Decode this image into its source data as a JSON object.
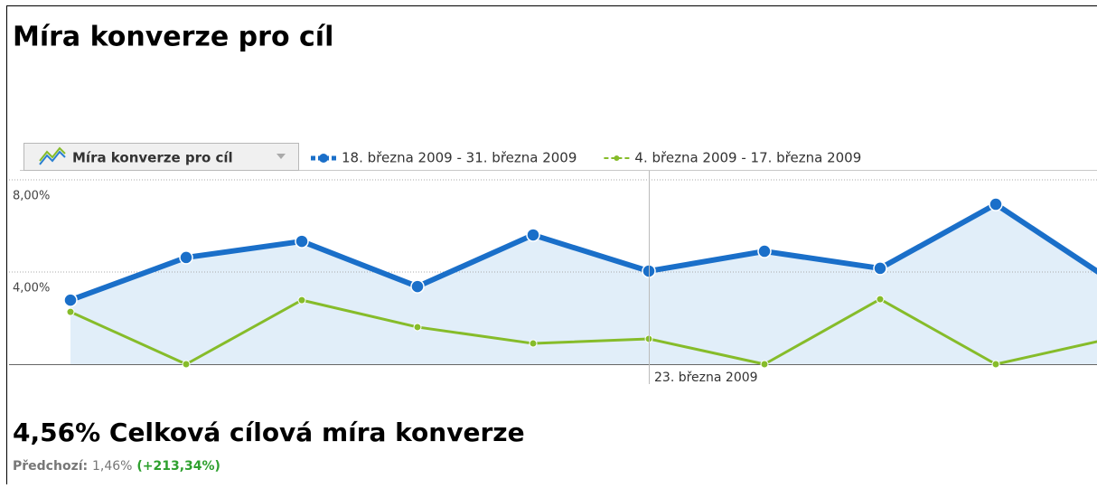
{
  "header": {
    "title": "Míra konverze pro cíl"
  },
  "chart_data": {
    "type": "line",
    "selector": "Míra konverze pro cíl",
    "categories": [
      null,
      null,
      null,
      null,
      null,
      "23. března 2009",
      null,
      null,
      null,
      null
    ],
    "series": [
      {
        "name": "18. března 2009 - 31. března 2009",
        "color": "#1a6fc9",
        "values": [
          2.78,
          4.63,
          5.33,
          3.37,
          5.61,
          4.04,
          4.9,
          4.16,
          6.94,
          3.62
        ]
      },
      {
        "name": "4. března 2009 - 17. března 2009",
        "color": "#86bc2a",
        "values": [
          2.27,
          0,
          2.78,
          1.61,
          0.9,
          1.1,
          0,
          2.82,
          0,
          1.12
        ]
      }
    ],
    "ylim": [
      0,
      8
    ],
    "yticks": [
      {
        "value": 4,
        "label": "4,00%"
      },
      {
        "value": 8,
        "label": "8,00%"
      }
    ],
    "grid": true
  },
  "summary": {
    "value": "4,56%",
    "label": "Celková cílová míra konverze",
    "previous_label": "Předchozí:",
    "previous_value": "1,46%",
    "change": "(+213,34%)"
  }
}
